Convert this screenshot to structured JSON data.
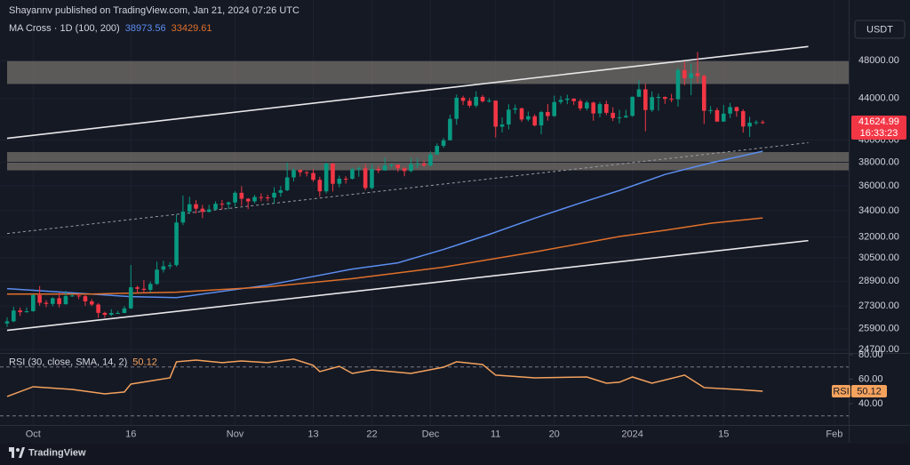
{
  "header": {
    "publisher": "Shayannv published on TradingView.com, Jan 21, 2024 07:26 UTC",
    "currency": "USDT",
    "brand": "TradingView"
  },
  "chart_data": [
    {
      "type": "candlestick",
      "legend_label": "MA Cross · 1D (100, 200)",
      "up_color": "#089981",
      "down_color": "#f23645",
      "log_scale": true,
      "grid": true,
      "ylim": [
        24500,
        55200
      ],
      "yticks": [
        {
          "value": 48000,
          "label": "48000.00"
        },
        {
          "value": 44000,
          "label": "44000.00"
        },
        {
          "value": 40000,
          "label": "40000.00"
        },
        {
          "value": 38000,
          "label": "38000.00"
        },
        {
          "value": 36000,
          "label": "36000.00"
        },
        {
          "value": 34000,
          "label": "34000.00"
        },
        {
          "value": 32000,
          "label": "32000.00"
        },
        {
          "value": 30500,
          "label": "30500.00"
        },
        {
          "value": 28900,
          "label": "28900.00"
        },
        {
          "value": 27300,
          "label": "27300.00"
        },
        {
          "value": 25900,
          "label": "25900.00"
        },
        {
          "value": 24700,
          "label": "24700.00"
        }
      ],
      "xlim": [
        -1.09,
        129.2
      ],
      "xticks": [
        {
          "value": 4,
          "label": "Oct"
        },
        {
          "value": 19,
          "label": "16"
        },
        {
          "value": 35,
          "label": "Nov"
        },
        {
          "value": 47,
          "label": "13"
        },
        {
          "value": 56,
          "label": "22"
        },
        {
          "value": 65,
          "label": "Dec"
        },
        {
          "value": 75,
          "label": "11"
        },
        {
          "value": 84,
          "label": "20"
        },
        {
          "value": 96,
          "label": "2024"
        },
        {
          "value": 110,
          "label": "15"
        },
        {
          "value": 127,
          "label": "Feb"
        }
      ],
      "open": [
        26220,
        26350,
        27020,
        26910,
        26970,
        27990,
        27500,
        27430,
        27790,
        27410,
        27930,
        27960,
        27920,
        27590,
        27390,
        26870,
        26750,
        26860,
        26860,
        27150,
        28500,
        28400,
        28330,
        28720,
        29680,
        29910,
        29990,
        33080,
        33920,
        34500,
        34150,
        33900,
        34090,
        34540,
        34500,
        34640,
        35420,
        34940,
        34730,
        35080,
        35050,
        35040,
        35420,
        35630,
        36700,
        37320,
        37140,
        37070,
        36490,
        35540,
        37880,
        36160,
        36590,
        36580,
        37390,
        37470,
        35810,
        37420,
        37290,
        37720,
        37790,
        37480,
        37240,
        37830,
        37860,
        37720,
        38690,
        39460,
        39970,
        41990,
        44080,
        43770,
        43290,
        44170,
        43720,
        43790,
        41240,
        41450,
        42890,
        43020,
        41930,
        42240,
        41360,
        42660,
        42260,
        43650,
        43860,
        43990,
        43740,
        43010,
        43600,
        42520,
        43440,
        42580,
        42070,
        42140,
        42280,
        44180,
        44940,
        42850,
        44150,
        44160,
        43970,
        43930,
        46970,
        46110,
        46630,
        46340,
        42780,
        42840,
        41730,
        42500,
        43140,
        42740,
        41260,
        41620,
        41670
      ],
      "high": [
        26600,
        27250,
        27200,
        27200,
        28050,
        28580,
        27670,
        27850,
        28130,
        28270,
        28040,
        28100,
        27990,
        27730,
        27480,
        26940,
        27100,
        26990,
        27290,
        30000,
        28610,
        28980,
        28880,
        30230,
        30300,
        30190,
        33700,
        35200,
        35100,
        34830,
        34450,
        34460,
        34740,
        34840,
        34720,
        35560,
        35960,
        35000,
        35260,
        35380,
        35270,
        35880,
        35980,
        37970,
        37520,
        37400,
        37230,
        37400,
        36750,
        37960,
        37920,
        36850,
        36800,
        37510,
        37650,
        37850,
        37860,
        37640,
        38420,
        37860,
        37800,
        37590,
        38400,
        38370,
        38150,
        38970,
        39690,
        40190,
        42400,
        44420,
        44280,
        44050,
        44730,
        44360,
        44040,
        43800,
        42130,
        43430,
        43400,
        43080,
        42700,
        42430,
        42780,
        43450,
        44290,
        44270,
        44400,
        44030,
        43930,
        43790,
        43680,
        43660,
        43790,
        43120,
        42880,
        42880,
        44190,
        45900,
        45500,
        44730,
        44500,
        44200,
        44480,
        47220,
        47890,
        47650,
        48970,
        46500,
        43240,
        43070,
        43360,
        43560,
        43200,
        42930,
        42200,
        41860,
        41860
      ],
      "low": [
        26020,
        26300,
        26670,
        26880,
        26940,
        27320,
        27220,
        27280,
        27200,
        27390,
        27880,
        27730,
        27300,
        27290,
        26560,
        26560,
        26670,
        26820,
        26850,
        27110,
        28120,
        28130,
        28170,
        28650,
        29480,
        29720,
        29880,
        32880,
        33720,
        33760,
        33410,
        33850,
        34050,
        34080,
        34100,
        34300,
        34380,
        34120,
        34570,
        34740,
        34740,
        34540,
        35100,
        35550,
        36360,
        36770,
        36780,
        36330,
        35110,
        35360,
        35530,
        35860,
        36180,
        36520,
        36750,
        35640,
        35710,
        37060,
        37280,
        37550,
        37160,
        36800,
        37140,
        37500,
        37590,
        37630,
        38650,
        39280,
        39970,
        41420,
        43350,
        43090,
        43100,
        43590,
        43600,
        40230,
        40690,
        40980,
        42480,
        41700,
        41760,
        41260,
        40530,
        41820,
        42180,
        43430,
        43440,
        43350,
        42790,
        42800,
        41810,
        42130,
        42350,
        41780,
        41550,
        42060,
        42190,
        44160,
        40810,
        42660,
        42780,
        43460,
        43630,
        43190,
        45360,
        44340,
        45630,
        41500,
        42480,
        41700,
        41720,
        42050,
        42200,
        40680,
        40280,
        41420,
        41500
      ],
      "close": [
        26350,
        27020,
        26910,
        26970,
        27990,
        27500,
        27430,
        27790,
        27410,
        27930,
        27960,
        27920,
        27590,
        27390,
        26870,
        26750,
        26860,
        26860,
        27150,
        28500,
        28400,
        28330,
        28720,
        29680,
        29910,
        29990,
        33080,
        33920,
        34500,
        34150,
        33900,
        34090,
        34540,
        34500,
        34640,
        35420,
        34940,
        34730,
        35080,
        35050,
        35040,
        35420,
        35630,
        36700,
        37320,
        37140,
        37070,
        36490,
        35540,
        37880,
        36160,
        36590,
        36580,
        37390,
        37470,
        35810,
        37420,
        37290,
        37720,
        37790,
        37480,
        37240,
        37830,
        37860,
        37720,
        38690,
        39460,
        39970,
        41990,
        44080,
        43770,
        43290,
        44170,
        43720,
        43790,
        41240,
        41450,
        42890,
        43020,
        41930,
        42240,
        41360,
        42660,
        42260,
        43650,
        43860,
        43990,
        43740,
        43010,
        43600,
        42520,
        43440,
        42580,
        42070,
        42140,
        42280,
        44180,
        44940,
        42850,
        44150,
        44160,
        43970,
        43930,
        46970,
        46110,
        46630,
        46340,
        42780,
        42840,
        41730,
        42500,
        43140,
        42740,
        41260,
        41620,
        41670,
        41624.99
      ],
      "countdown": "16:33:23",
      "series": [
        {
          "color": "#5b8def",
          "x": [
            0,
            19,
            26,
            40,
            53,
            60,
            67,
            74,
            81,
            88,
            94,
            101,
            108,
            116
          ],
          "values": [
            28410,
            27890,
            27830,
            28640,
            29720,
            30150,
            31090,
            32180,
            33410,
            34600,
            35610,
            36950,
            37940,
            38973.56
          ]
        },
        {
          "color": "#e0702a",
          "x": [
            0,
            13,
            26,
            40,
            53,
            67,
            81,
            94,
            101,
            108,
            116
          ],
          "values": [
            28060,
            28060,
            28180,
            28530,
            29070,
            29850,
            30910,
            32030,
            32490,
            33020,
            33429.61
          ]
        }
      ],
      "zone_color": "#8c857b",
      "zones": [
        {
          "low": 45500,
          "high": 48000
        },
        {
          "low": 37300,
          "high": 38900
        }
      ],
      "trendlines": [
        {
          "x": [
            0,
            123
          ],
          "values": [
            40150,
            49600
          ],
          "color": "#e8e8ea",
          "dashed": false
        },
        {
          "x": [
            0,
            123
          ],
          "values": [
            25810,
            31730
          ],
          "color": "#e8e8ea",
          "dashed": false
        },
        {
          "x": [
            0,
            123
          ],
          "values": [
            32250,
            39750
          ],
          "color": "#9a9ca3",
          "dashed": true
        }
      ]
    },
    {
      "type": "line",
      "title": "RSI (30, close, SMA, 14, 2)",
      "side_label": "RSI",
      "ylim": [
        22.5,
        80.7
      ],
      "yticks": [
        {
          "value": 80,
          "label": "80.00"
        },
        {
          "value": 60,
          "label": "60.00"
        },
        {
          "value": 40,
          "label": "40.00"
        }
      ],
      "bands": [
        70,
        30
      ],
      "series": [
        {
          "color": "#f5a25d",
          "x": [
            0,
            4,
            10,
            15,
            18,
            19,
            25,
            26,
            29,
            33,
            36,
            40,
            44,
            47,
            48,
            51,
            53,
            56,
            62,
            67,
            69,
            73,
            75,
            81,
            89,
            92,
            94,
            96,
            99,
            104,
            107,
            112,
            116
          ],
          "values": [
            45.8,
            53.8,
            51.6,
            48.0,
            49.5,
            56.0,
            61.1,
            74.2,
            75.6,
            73.5,
            74.9,
            73.5,
            76.4,
            71.3,
            66.2,
            70.5,
            64.7,
            67.6,
            64.7,
            69.8,
            74.2,
            72.0,
            63.3,
            61.1,
            61.8,
            56.7,
            57.5,
            61.8,
            56.7,
            63.3,
            53.1,
            51.6,
            50.12
          ]
        }
      ]
    }
  ]
}
